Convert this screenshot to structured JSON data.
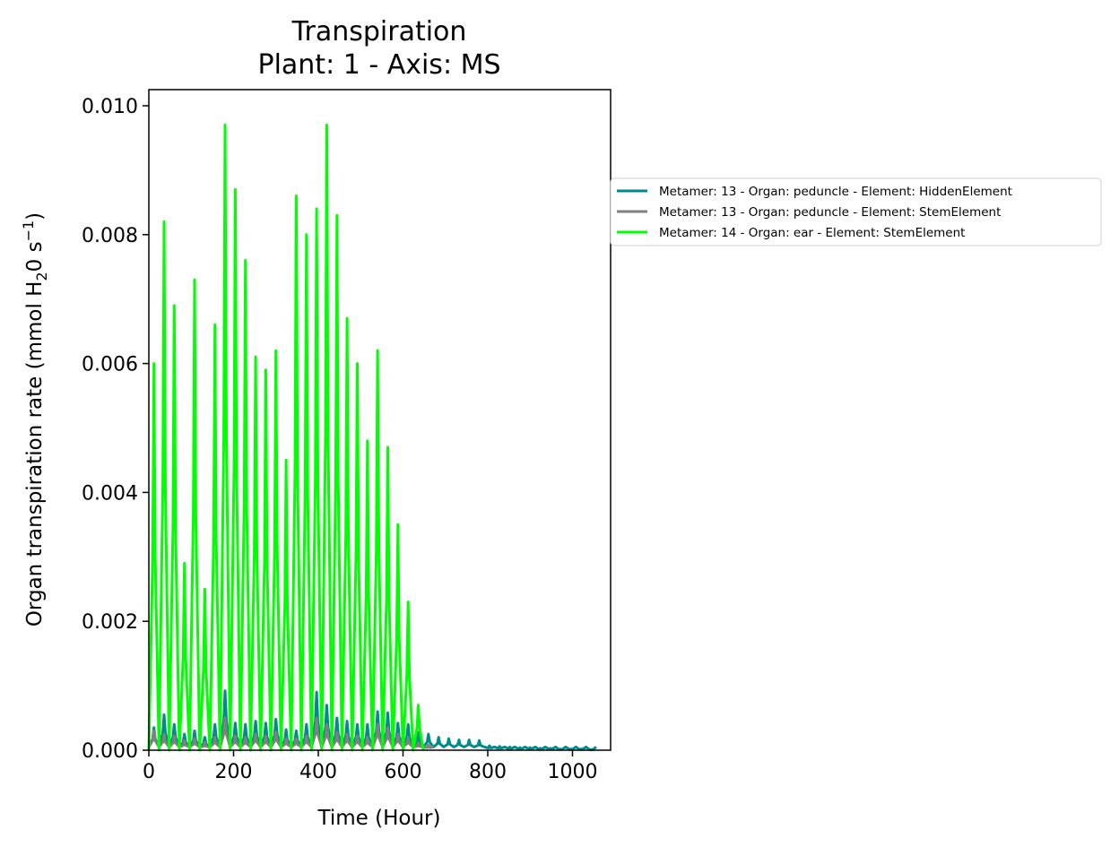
{
  "chart_data": {
    "type": "line",
    "title": "Transpiration",
    "subtitle": "Plant: 1 - Axis: MS",
    "xlabel": "Time (Hour)",
    "ylabel_parts": {
      "prefix": "Organ transpiration rate (mmol H",
      "sub": "2",
      "middle": "0 s",
      "sup": "−1",
      "suffix": ")"
    },
    "xlim": [
      0,
      1090
    ],
    "ylim": [
      0,
      0.01025
    ],
    "xticks": [
      0,
      200,
      400,
      600,
      800,
      1000
    ],
    "xtick_labels": [
      "0",
      "200",
      "400",
      "600",
      "800",
      "1000"
    ],
    "yticks": [
      0,
      0.002,
      0.004,
      0.006,
      0.008,
      0.01
    ],
    "ytick_labels": [
      "0.000",
      "0.002",
      "0.004",
      "0.006",
      "0.008",
      "0.010"
    ],
    "grid": false,
    "legend_position": "outside-right",
    "series": [
      {
        "name": "Metamer: 13 - Organ: peduncle - Element: HiddenElement",
        "color": "#008b8b",
        "peak_x": [
          12,
          36,
          60,
          84,
          108,
          132,
          156,
          180,
          204,
          228,
          252,
          276,
          300,
          324,
          348,
          372,
          396,
          420,
          444,
          468,
          492,
          516,
          540,
          564,
          588,
          612,
          636,
          660,
          684,
          708,
          732,
          756,
          780,
          804,
          828,
          852,
          876,
          900,
          924,
          948,
          972,
          996,
          1020,
          1044
        ],
        "peak_y": [
          0.00035,
          0.00055,
          0.0004,
          0.00025,
          0.0003,
          0.0002,
          0.0004,
          0.00092,
          0.00042,
          0.0004,
          0.00045,
          0.00042,
          0.00048,
          0.00032,
          0.0003,
          0.0004,
          0.0009,
          0.0007,
          0.0005,
          0.00045,
          0.0004,
          0.0004,
          0.0006,
          0.00058,
          0.00042,
          0.0004,
          0.00028,
          0.00025,
          0.0002,
          0.00018,
          0.00016,
          0.00016,
          0.00015,
          7e-05,
          6e-05,
          5e-05,
          4e-05,
          4e-05,
          3e-05,
          3e-05,
          2e-05,
          2e-05,
          2e-05,
          1e-05
        ],
        "trough_y": 5e-05
      },
      {
        "name": "Metamer: 13 - Organ: peduncle - Element: StemElement",
        "color": "#808080",
        "peak_x": [
          12,
          36,
          60,
          84,
          108,
          132,
          156,
          180,
          204,
          228,
          252,
          276,
          300,
          324,
          348,
          372,
          396,
          420,
          444,
          468,
          492,
          516,
          540,
          564,
          588,
          612,
          636,
          660
        ],
        "peak_y": [
          0.0003,
          0.00025,
          0.00022,
          0.00015,
          0.00018,
          0.00012,
          0.0002,
          0.0005,
          0.00022,
          0.0002,
          0.00025,
          0.00022,
          0.00028,
          0.00018,
          0.00018,
          0.00022,
          0.0005,
          0.0004,
          0.00028,
          0.00025,
          0.00022,
          0.0002,
          0.0004,
          0.00035,
          0.00025,
          0.0002,
          0.00012,
          8e-05
        ],
        "trough_y": 5e-05
      },
      {
        "name": "Metamer: 14 - Organ: ear - Element: StemElement",
        "color": "#00ff00",
        "peak_x": [
          12,
          36,
          60,
          84,
          108,
          132,
          156,
          180,
          204,
          228,
          252,
          276,
          300,
          324,
          348,
          372,
          396,
          420,
          444,
          468,
          492,
          516,
          540,
          564,
          588,
          612,
          636
        ],
        "peak_y": [
          0.006,
          0.0082,
          0.0069,
          0.0029,
          0.0073,
          0.0025,
          0.0066,
          0.0097,
          0.0087,
          0.0076,
          0.0061,
          0.0059,
          0.0062,
          0.0045,
          0.0086,
          0.008,
          0.0084,
          0.0097,
          0.0083,
          0.0067,
          0.006,
          0.0048,
          0.0062,
          0.0047,
          0.0035,
          0.0023,
          0.0007
        ],
        "trough_y": 0.0
      }
    ]
  }
}
